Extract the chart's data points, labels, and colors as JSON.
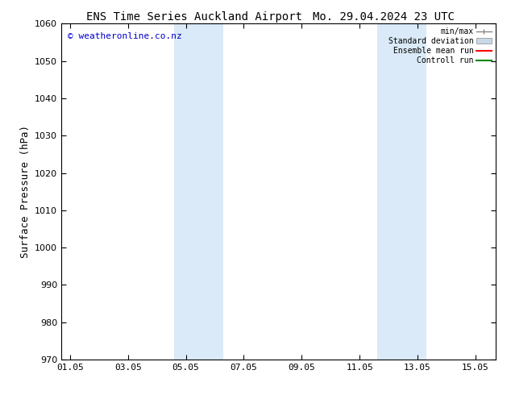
{
  "title_left": "ENS Time Series Auckland Airport",
  "title_right": "Mo. 29.04.2024 23 UTC",
  "ylabel": "Surface Pressure (hPa)",
  "ylim": [
    970,
    1060
  ],
  "yticks": [
    970,
    980,
    990,
    1000,
    1010,
    1020,
    1030,
    1040,
    1050,
    1060
  ],
  "xtick_labels": [
    "01.05",
    "03.05",
    "05.05",
    "07.05",
    "09.05",
    "11.05",
    "13.05",
    "15.05"
  ],
  "xtick_positions": [
    0,
    2,
    4,
    6,
    8,
    10,
    12,
    14
  ],
  "xlim": [
    -0.3,
    14.7
  ],
  "blue_bands": [
    {
      "x_start": 3.6,
      "x_end": 5.3
    },
    {
      "x_start": 10.6,
      "x_end": 12.3
    }
  ],
  "band_color": "#daeaf8",
  "watermark": "© weatheronline.co.nz",
  "legend_items": [
    {
      "label": "min/max",
      "color": "#888888",
      "type": "line_caps"
    },
    {
      "label": "Standard deviation",
      "color": "#c8d8e8",
      "type": "rect"
    },
    {
      "label": "Ensemble mean run",
      "color": "#ff0000",
      "type": "line"
    },
    {
      "label": "Controll run",
      "color": "#008800",
      "type": "line"
    }
  ],
  "bg_color": "#ffffff",
  "title_fontsize": 10,
  "tick_fontsize": 8,
  "ylabel_fontsize": 9,
  "watermark_color": "#0000cc"
}
